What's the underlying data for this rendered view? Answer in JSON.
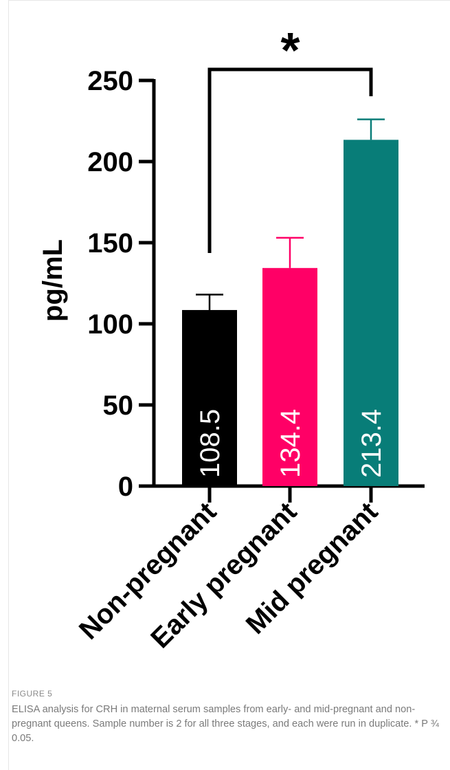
{
  "chart_data": {
    "type": "bar",
    "categories": [
      "Non-pregnant",
      "Early pregnant",
      "Mid pregnant"
    ],
    "values": [
      108.5,
      134.4,
      213.4
    ],
    "error_upper": [
      118,
      153,
      226
    ],
    "value_labels": [
      "108.5",
      "134.4",
      "213.4"
    ],
    "colors": [
      "#000000",
      "#ff0066",
      "#087d78"
    ],
    "ylabel": "pg/mL",
    "xlabel": "",
    "title": "",
    "ylim": [
      0,
      250
    ],
    "yticks": [
      0,
      50,
      100,
      150,
      200,
      250
    ],
    "ytick_labels": [
      "0",
      "50",
      "100",
      "150",
      "200",
      "250"
    ],
    "grid": false,
    "significance": {
      "from": "Non-pregnant",
      "to": "Mid pregnant",
      "label": "*"
    }
  },
  "caption": {
    "label": "FIGURE 5",
    "text": "ELISA analysis for CRH in maternal serum samples from early- and mid-pregnant and non-pregnant queens. Sample number is 2 for all three stages, and each were run in duplicate. * P ¾ 0.05."
  }
}
